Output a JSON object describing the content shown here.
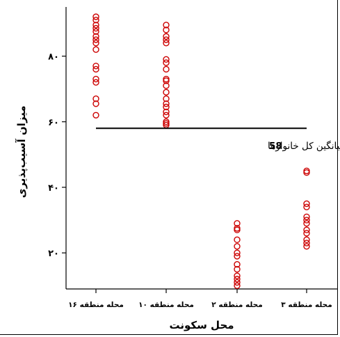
{
  "chart_data": {
    "type": "scatter",
    "xlabel": "محل سکونت",
    "ylabel": "میزان آسیب‌پذیری",
    "categories": [
      "محله منطقه ۱۶",
      "محله منطقه ۱۰",
      "محله منطقه ۲",
      "محله منطقه ۳"
    ],
    "yticks": [
      20,
      40,
      60,
      80
    ],
    "ytick_labels": [
      "۲۰",
      "۴۰",
      "۶۰",
      "۸۰"
    ],
    "ylim": [
      9,
      95
    ],
    "grid": false,
    "point_color": "#cc0000",
    "mean_value": 58,
    "annotation": {
      "value": "58",
      "text": "= میانگین کل خانوارها"
    },
    "series": [
      {
        "values": [
          92,
          91,
          89.5,
          88.5,
          87.5,
          86,
          85,
          84,
          82,
          77,
          76,
          73,
          72,
          67,
          65.5,
          62
        ]
      },
      {
        "values": [
          89.5,
          88,
          86,
          85,
          84,
          79,
          78,
          76,
          73,
          72.5,
          71,
          69,
          67,
          65.5,
          64.5,
          63,
          62,
          60,
          59.5,
          59
        ]
      },
      {
        "values": [
          29,
          27.5,
          27,
          24,
          22,
          20,
          19,
          16.5,
          15,
          13,
          12,
          11,
          10
        ]
      },
      {
        "values": [
          45,
          44.5,
          35,
          34,
          31,
          30,
          29,
          27,
          26,
          24,
          23,
          22
        ]
      }
    ]
  }
}
